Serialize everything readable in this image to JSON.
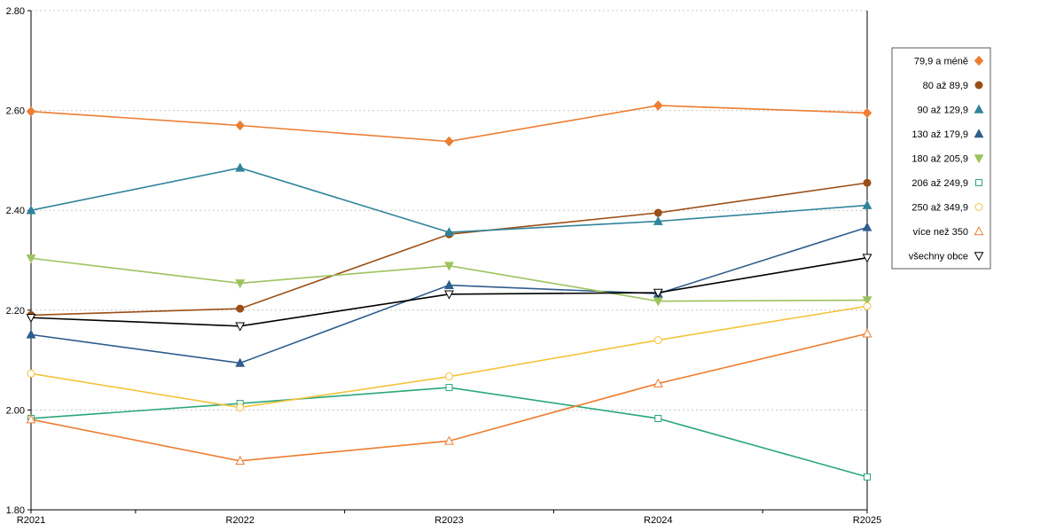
{
  "chart_data": {
    "type": "line",
    "title": "",
    "xlabel": "",
    "ylabel": "",
    "categories": [
      "R2021",
      "R2022",
      "R2023",
      "R2024",
      "R2025"
    ],
    "y_tick_labels": [
      "1.80",
      "2.00",
      "2.20",
      "2.40",
      "2.60",
      "2.80"
    ],
    "ylim": [
      1.8,
      2.8
    ],
    "y_tick_step": 0.2,
    "grid": "horizontal-dotted",
    "legend_position": "right-top",
    "axis_color": "#000000",
    "gridline_color": "#c8c8c8",
    "legend_border_color": "#595959",
    "series": [
      {
        "name": "79,9 a méně",
        "color": "#ED7D31",
        "marker": {
          "shape": "diamond",
          "fill": "filled"
        },
        "values": [
          2.598,
          2.57,
          2.538,
          2.61,
          2.595
        ]
      },
      {
        "name": "80 až 89,9",
        "color": "#9B4F16",
        "marker": {
          "shape": "circle",
          "fill": "filled"
        },
        "values": [
          2.19,
          2.203,
          2.352,
          2.395,
          2.455
        ]
      },
      {
        "name": "90 až 129,9",
        "color": "#31849B",
        "marker": {
          "shape": "triangle-up",
          "fill": "filled"
        },
        "values": [
          2.4,
          2.485,
          2.356,
          2.378,
          2.41
        ]
      },
      {
        "name": "130 až 179,9",
        "color": "#2F5D8C",
        "marker": {
          "shape": "triangle-up",
          "fill": "filled"
        },
        "values": [
          2.151,
          2.094,
          2.25,
          2.233,
          2.366
        ]
      },
      {
        "name": "180 až 205,9",
        "color": "#9DC35E",
        "marker": {
          "shape": "triangle-down",
          "fill": "filled"
        },
        "values": [
          2.304,
          2.254,
          2.289,
          2.218,
          2.22
        ]
      },
      {
        "name": "206 až 249,9",
        "color": "#2AA779",
        "marker": {
          "shape": "square",
          "fill": "open"
        },
        "values": [
          1.983,
          2.013,
          2.045,
          1.983,
          1.866
        ]
      },
      {
        "name": "250 až 349,9",
        "color": "#F2C33C",
        "marker": {
          "shape": "circle",
          "fill": "open"
        },
        "values": [
          2.073,
          2.005,
          2.067,
          2.14,
          2.208
        ]
      },
      {
        "name": "více než 350",
        "color": "#ED7D31",
        "marker": {
          "shape": "triangle-up",
          "fill": "open"
        },
        "values": [
          1.981,
          1.898,
          1.938,
          2.053,
          2.153
        ]
      },
      {
        "name": "všechny obce",
        "color": "#000000",
        "marker": {
          "shape": "triangle-down",
          "fill": "open"
        },
        "values": [
          2.185,
          2.168,
          2.232,
          2.235,
          2.305
        ]
      }
    ]
  }
}
